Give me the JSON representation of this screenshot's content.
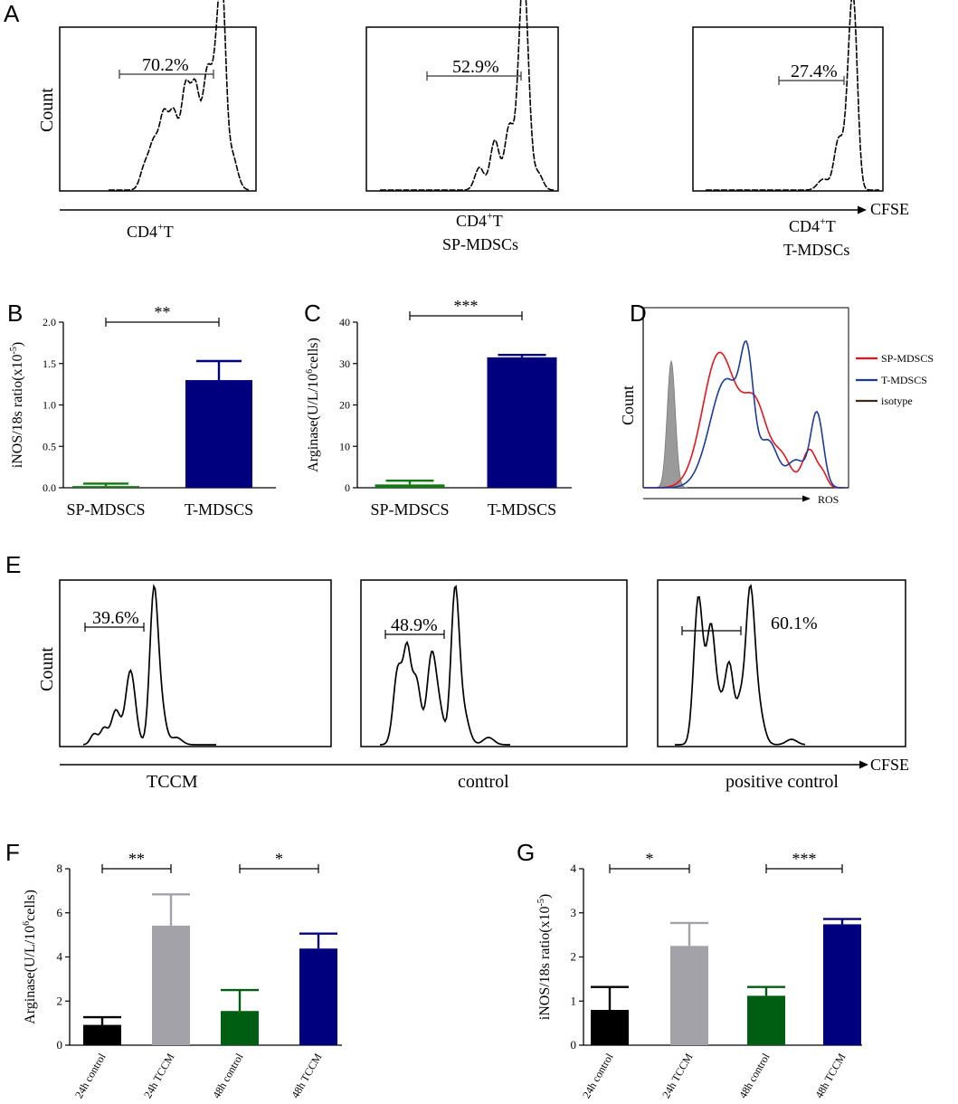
{
  "figure": {
    "panel_labels": [
      "A",
      "B",
      "C",
      "D",
      "E",
      "F",
      "G"
    ],
    "A": {
      "ylabel": "Count",
      "xaxis_label": "CFSE",
      "panels": [
        {
          "gate_pct": "70.2%",
          "cond_line1": "CD4",
          "cond_sup": "+",
          "cond_line1_tail": "T",
          "cond_line2": ""
        },
        {
          "gate_pct": "52.9%",
          "cond_line1": "CD4",
          "cond_sup": "+",
          "cond_line1_tail": "T",
          "cond_line2": "SP-MDSCs"
        },
        {
          "gate_pct": "27.4%",
          "cond_line1": "CD4",
          "cond_sup": "+",
          "cond_line1_tail": "T",
          "cond_line2": "T-MDSCs"
        }
      ]
    },
    "D": {
      "ylabel": "Count",
      "xlabel": "ROS",
      "legend": [
        {
          "label": "SP-MDSCS",
          "color": "#e8141b"
        },
        {
          "label": "T-MDSCS",
          "color": "#1b3a9c"
        },
        {
          "label": "isotype",
          "color": "#3a2a1a"
        }
      ]
    },
    "E": {
      "ylabel": "Count",
      "xaxis_label": "CFSE",
      "panels": [
        {
          "gate_pct": "39.6%",
          "cond": "TCCM"
        },
        {
          "gate_pct": "48.9%",
          "cond": "control"
        },
        {
          "gate_pct": "60.1%",
          "cond": "positive control"
        }
      ]
    }
  },
  "chart_data": [
    {
      "panel": "B",
      "type": "bar",
      "categories": [
        "SP-MDSCS",
        "T-MDSCS"
      ],
      "values": [
        0.02,
        1.3
      ],
      "errors": [
        0.03,
        0.23
      ],
      "colors": [
        "#0f7a0f",
        "#00007f"
      ],
      "ylabel_main": "iNOS/18s ratio(x10",
      "ylabel_sup": "-5",
      "ylabel_tail": ")",
      "ylim": [
        0,
        2.0
      ],
      "yticks": [
        "0.0",
        "0.5",
        "1.0",
        "1.5",
        "2.0"
      ],
      "significance": [
        {
          "from": 0,
          "to": 1,
          "label": "**"
        }
      ]
    },
    {
      "panel": "C",
      "type": "bar",
      "categories": [
        "SP-MDSCS",
        "T-MDSCS"
      ],
      "values": [
        0.8,
        31.5
      ],
      "errors": [
        0.9,
        0.6
      ],
      "colors": [
        "#0f7a0f",
        "#00007f"
      ],
      "ylabel_main": "Arginase(U/L/10",
      "ylabel_sup": "6",
      "ylabel_tail": "cells)",
      "ylim": [
        0,
        40
      ],
      "yticks": [
        "0",
        "10",
        "20",
        "30",
        "40"
      ],
      "significance": [
        {
          "from": 0,
          "to": 1,
          "label": "***"
        }
      ]
    },
    {
      "panel": "F",
      "type": "bar",
      "categories": [
        "24h control",
        "24h TCCM",
        "48h control",
        "48h TCCM"
      ],
      "values": [
        0.92,
        5.42,
        1.55,
        4.38
      ],
      "errors": [
        0.35,
        1.42,
        0.95,
        0.68
      ],
      "colors": [
        "#000000",
        "#a2a2a8",
        "#005e12",
        "#00007f"
      ],
      "ylabel_main": "Arginase(U/L/10",
      "ylabel_sup": "6",
      "ylabel_tail": "cells)",
      "ylim": [
        0,
        8
      ],
      "yticks": [
        "0",
        "2",
        "4",
        "6",
        "8"
      ],
      "significance": [
        {
          "from": 0,
          "to": 1,
          "label": "**"
        },
        {
          "from": 2,
          "to": 3,
          "label": "*"
        }
      ]
    },
    {
      "panel": "G",
      "type": "bar",
      "categories": [
        "24h control",
        "24h TCCM",
        "48h control",
        "48h TCCM"
      ],
      "values": [
        0.8,
        2.25,
        1.12,
        2.74
      ],
      "errors": [
        0.52,
        0.52,
        0.2,
        0.12
      ],
      "colors": [
        "#000000",
        "#a2a2a8",
        "#005e12",
        "#00007f"
      ],
      "ylabel_main": "iNOS/18s ratio(x10",
      "ylabel_sup": "-5",
      "ylabel_tail": ")",
      "ylim": [
        0,
        4
      ],
      "yticks": [
        "0",
        "1",
        "2",
        "3",
        "4"
      ],
      "significance": [
        {
          "from": 0,
          "to": 1,
          "label": "*"
        },
        {
          "from": 2,
          "to": 3,
          "label": "***"
        }
      ]
    }
  ]
}
